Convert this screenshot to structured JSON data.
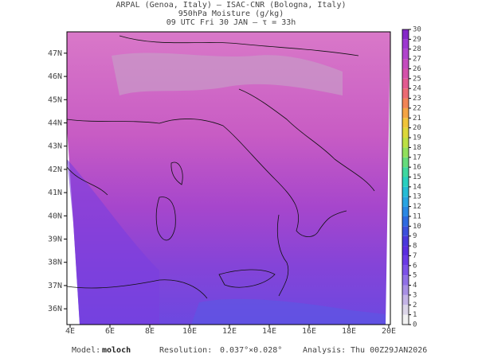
{
  "header": {
    "lines": [
      "ARPAL (Genoa, Italy)  –  ISAC-CNR (Bologna, Italy)",
      "950hPa Moisture (g/kg)",
      "09 UTC Fri 30 JAN  –  τ = 33h"
    ]
  },
  "map": {
    "lonlim": [
      3.84,
      20.08
    ],
    "latlim": [
      35.32,
      47.92
    ],
    "lon_ticks": [
      {
        "value": 4,
        "label": "4E"
      },
      {
        "value": 6,
        "label": "6E"
      },
      {
        "value": 8,
        "label": "8E"
      },
      {
        "value": 10,
        "label": "10E"
      },
      {
        "value": 12,
        "label": "12E"
      },
      {
        "value": 14,
        "label": "14E"
      },
      {
        "value": 16,
        "label": "16E"
      },
      {
        "value": 18,
        "label": "18E"
      },
      {
        "value": 20,
        "label": "20E"
      }
    ],
    "lat_ticks": [
      {
        "value": 36,
        "label": "36N"
      },
      {
        "value": 37,
        "label": "37N"
      },
      {
        "value": 38,
        "label": "38N"
      },
      {
        "value": 39,
        "label": "39N"
      },
      {
        "value": 40,
        "label": "40N"
      },
      {
        "value": 41,
        "label": "41N"
      },
      {
        "value": 42,
        "label": "42N"
      },
      {
        "value": 43,
        "label": "43N"
      },
      {
        "value": 44,
        "label": "44N"
      },
      {
        "value": 45,
        "label": "45N"
      },
      {
        "value": 46,
        "label": "46N"
      },
      {
        "value": 47,
        "label": "47N"
      }
    ]
  },
  "colorbar": {
    "lim": [
      0,
      30
    ],
    "ticks": [
      0,
      1,
      2,
      3,
      4,
      5,
      6,
      7,
      8,
      9,
      10,
      11,
      12,
      13,
      14,
      15,
      16,
      17,
      18,
      19,
      20,
      21,
      22,
      23,
      24,
      25,
      26,
      27,
      28,
      29,
      30
    ],
    "colors": [
      "#f2f2f2",
      "#dcd6e8",
      "#c4b4e6",
      "#a890e4",
      "#9070e6",
      "#7c52e8",
      "#6a3ae6",
      "#5a2ee0",
      "#4a38dc",
      "#3c50dc",
      "#2e6ae0",
      "#2a88e4",
      "#28a4e2",
      "#26bcd6",
      "#2ad0c0",
      "#40d8a0",
      "#66dc7c",
      "#92e05c",
      "#bce044",
      "#dcd83a",
      "#f0c43a",
      "#f4a444",
      "#f28456",
      "#ec6a72",
      "#e25a90",
      "#d452aa",
      "#c44cbe",
      "#b044cc",
      "#9c38d0",
      "#8428c8"
    ]
  },
  "footer": {
    "model_label": "Model:",
    "model": "moloch",
    "resolution_label": "Resolution:",
    "resolution": "0.037°×0.028°",
    "analysis_label": "Analysis:",
    "analysis": "Thu 00Z29JAN2026"
  }
}
